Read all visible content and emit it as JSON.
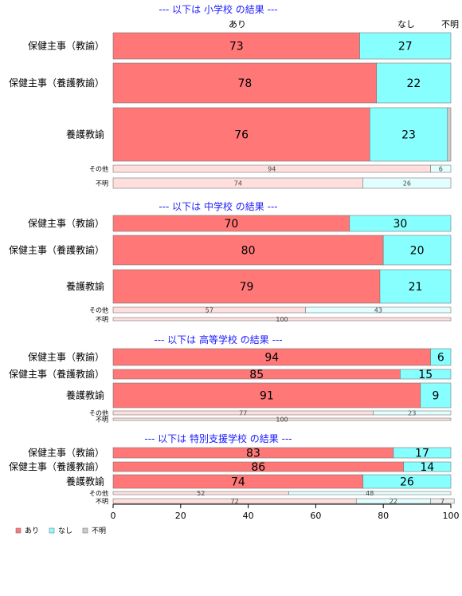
{
  "chart_data": {
    "type": "bar",
    "orientation": "horizontal",
    "stacked": "percent",
    "xlim": [
      0,
      100
    ],
    "x_ticks": [
      "0",
      "20",
      "40",
      "60",
      "80",
      "100"
    ],
    "column_labels": [
      "あり",
      "なし",
      "不明"
    ],
    "legend": {
      "placement": "bottom-left",
      "items": [
        "あり",
        "なし",
        "不明"
      ]
    },
    "colors": {
      "main": [
        "#ff7777",
        "#88ffff",
        "#cccccc"
      ],
      "minor": [
        "#ffdede",
        "#e2ffff",
        "#eeeeee"
      ]
    },
    "groups": [
      {
        "title": "--- 以下は 小学校 の結果 ---",
        "rows": [
          {
            "label": "保健主事（教諭）",
            "values": [
              73,
              27,
              0
            ],
            "labels": [
              "73",
              "27",
              ""
            ]
          },
          {
            "label": "保健主事（養護教諭）",
            "values": [
              78,
              22,
              0
            ],
            "labels": [
              "78",
              "22",
              ""
            ]
          },
          {
            "label": "養護教諭",
            "values": [
              76,
              23,
              1
            ],
            "labels": [
              "76",
              "23",
              ""
            ]
          },
          {
            "label": "その他",
            "values": [
              94,
              6,
              0
            ],
            "labels": [
              "94",
              "6",
              ""
            ]
          },
          {
            "label": "不明",
            "values": [
              74,
              26,
              0
            ],
            "labels": [
              "74",
              "26",
              ""
            ]
          }
        ]
      },
      {
        "title": "--- 以下は 中学校 の結果 ---",
        "rows": [
          {
            "label": "保健主事（教諭）",
            "values": [
              70,
              30,
              0
            ],
            "labels": [
              "70",
              "30",
              ""
            ]
          },
          {
            "label": "保健主事（養護教諭）",
            "values": [
              80,
              20,
              0
            ],
            "labels": [
              "80",
              "20",
              ""
            ]
          },
          {
            "label": "養護教諭",
            "values": [
              79,
              21,
              0
            ],
            "labels": [
              "79",
              "21",
              ""
            ]
          },
          {
            "label": "その他",
            "values": [
              57,
              43,
              0
            ],
            "labels": [
              "57",
              "43",
              ""
            ]
          },
          {
            "label": "不明",
            "values": [
              100,
              0,
              0
            ],
            "labels": [
              "100",
              "",
              ""
            ]
          }
        ]
      },
      {
        "title": "--- 以下は 高等学校 の結果 ---",
        "rows": [
          {
            "label": "保健主事（教諭）",
            "values": [
              94,
              6,
              0
            ],
            "labels": [
              "94",
              "6",
              ""
            ]
          },
          {
            "label": "保健主事（養護教諭）",
            "values": [
              85,
              15,
              0
            ],
            "labels": [
              "85",
              "15",
              ""
            ]
          },
          {
            "label": "養護教諭",
            "values": [
              91,
              9,
              0
            ],
            "labels": [
              "91",
              "9",
              ""
            ]
          },
          {
            "label": "その他",
            "values": [
              77,
              23,
              0
            ],
            "labels": [
              "77",
              "23",
              ""
            ]
          },
          {
            "label": "不明",
            "values": [
              100,
              0,
              0
            ],
            "labels": [
              "100",
              "",
              ""
            ]
          }
        ]
      },
      {
        "title": "--- 以下は 特別支援学校 の結果 ---",
        "rows": [
          {
            "label": "保健主事（教諭）",
            "values": [
              83,
              17,
              0
            ],
            "labels": [
              "83",
              "17",
              ""
            ]
          },
          {
            "label": "保健主事（養護教諭）",
            "values": [
              86,
              14,
              0
            ],
            "labels": [
              "86",
              "14",
              ""
            ]
          },
          {
            "label": "養護教諭",
            "values": [
              74,
              26,
              0
            ],
            "labels": [
              "74",
              "26",
              ""
            ]
          },
          {
            "label": "その他",
            "values": [
              52,
              48,
              0
            ],
            "labels": [
              "52",
              "48",
              ""
            ]
          },
          {
            "label": "不明",
            "values": [
              72,
              22,
              7
            ],
            "labels": [
              "72",
              "22",
              "7"
            ]
          }
        ]
      }
    ]
  }
}
